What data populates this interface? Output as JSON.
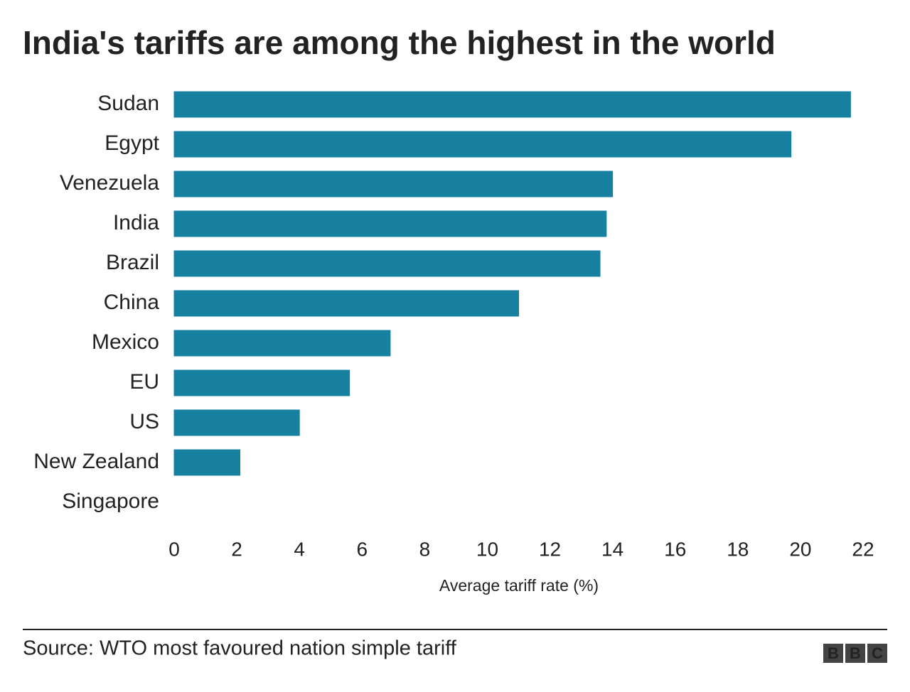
{
  "chart_data": {
    "type": "hbar",
    "title": "India's tariffs are among the highest in the world",
    "categories": [
      "Sudan",
      "Egypt",
      "Venezuela",
      "India",
      "Brazil",
      "China",
      "Mexico",
      "EU",
      "US",
      "New Zealand",
      "Singapore"
    ],
    "values": [
      21.6,
      19.7,
      14.0,
      13.8,
      13.6,
      11.0,
      6.9,
      5.6,
      4.0,
      2.1,
      0
    ],
    "color": "#1780a1",
    "xlim": [
      0,
      22
    ],
    "xticks": [
      0,
      2,
      4,
      6,
      8,
      10,
      12,
      14,
      16,
      18,
      20,
      22
    ],
    "xlabel": "Average tariff rate (%)",
    "grid": false
  },
  "footer": {
    "source": "Source: WTO most favoured nation simple tariff",
    "logo": [
      "B",
      "B",
      "C"
    ]
  }
}
